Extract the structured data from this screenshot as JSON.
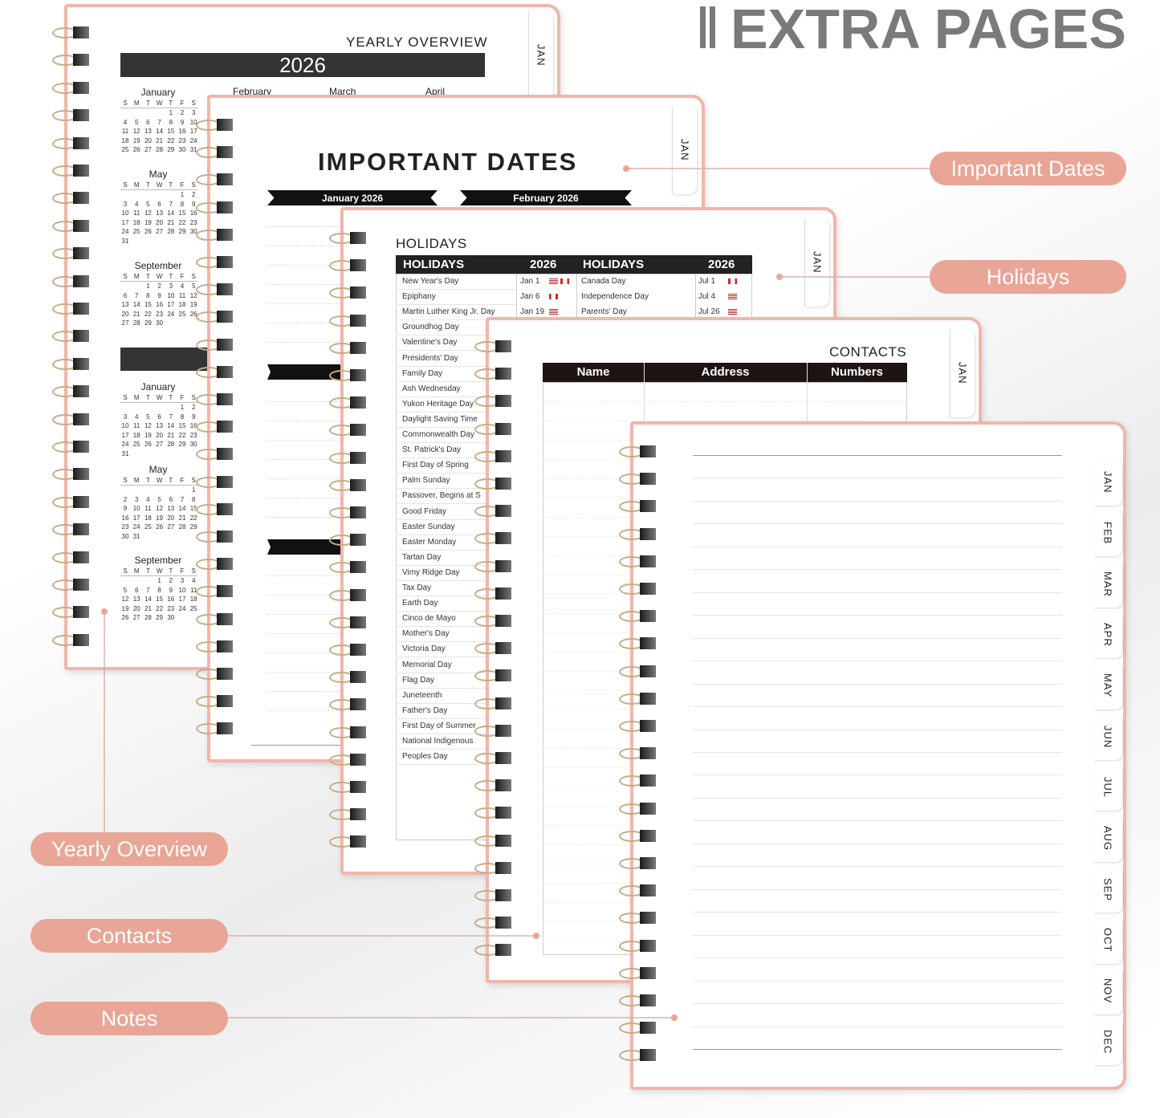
{
  "header": {
    "title": "EXTRA PAGES"
  },
  "callouts": [
    "Important Dates",
    "Holidays",
    "Yearly Overview",
    "Contacts",
    "Notes"
  ],
  "yearly_overview": {
    "title": "YEARLY OVERVIEW",
    "year": "2026",
    "tab": "JAN",
    "top_months": [
      "February",
      "March",
      "April"
    ],
    "weekdays": [
      "S",
      "M",
      "T",
      "W",
      "T",
      "F",
      "S"
    ],
    "months": [
      {
        "name": "January",
        "rows": [
          [
            null,
            null,
            null,
            null,
            1,
            2,
            3
          ],
          [
            4,
            5,
            6,
            7,
            8,
            9,
            10
          ],
          [
            11,
            12,
            13,
            14,
            15,
            16,
            17
          ],
          [
            18,
            19,
            20,
            21,
            22,
            23,
            24
          ],
          [
            25,
            26,
            27,
            28,
            29,
            30,
            31
          ]
        ]
      },
      {
        "name": "May",
        "rows": [
          [
            null,
            null,
            null,
            null,
            null,
            1,
            2
          ],
          [
            3,
            4,
            5,
            6,
            7,
            8,
            9
          ],
          [
            10,
            11,
            12,
            13,
            14,
            15,
            16
          ],
          [
            17,
            18,
            19,
            20,
            21,
            22,
            23
          ],
          [
            24,
            25,
            26,
            27,
            28,
            29,
            30
          ],
          [
            31
          ]
        ]
      },
      {
        "name": "September",
        "rows": [
          [
            null,
            null,
            1,
            2,
            3,
            4,
            5
          ],
          [
            6,
            7,
            8,
            9,
            10,
            11,
            12
          ],
          [
            13,
            14,
            15,
            16,
            17,
            18,
            19
          ],
          [
            20,
            21,
            22,
            23,
            24,
            25,
            26
          ],
          [
            27,
            28,
            29,
            30
          ]
        ]
      },
      {
        "name": "January",
        "rows": [
          [
            null,
            null,
            null,
            null,
            null,
            1,
            2
          ],
          [
            3,
            4,
            5,
            6,
            7,
            8,
            9
          ],
          [
            10,
            11,
            12,
            13,
            14,
            15,
            16
          ],
          [
            17,
            18,
            19,
            20,
            21,
            22,
            23
          ],
          [
            24,
            25,
            26,
            27,
            28,
            29,
            30
          ],
          [
            31
          ]
        ]
      },
      {
        "name": "May",
        "rows": [
          [
            null,
            null,
            null,
            null,
            null,
            null,
            1
          ],
          [
            2,
            3,
            4,
            5,
            6,
            7,
            8
          ],
          [
            9,
            10,
            11,
            12,
            13,
            14,
            15
          ],
          [
            16,
            17,
            18,
            19,
            20,
            21,
            22
          ],
          [
            23,
            24,
            25,
            26,
            27,
            28,
            29
          ],
          [
            30,
            31
          ]
        ]
      },
      {
        "name": "September",
        "rows": [
          [
            null,
            null,
            null,
            1,
            2,
            3,
            4
          ],
          [
            5,
            6,
            7,
            8,
            9,
            10,
            11
          ],
          [
            12,
            13,
            14,
            15,
            16,
            17,
            18
          ],
          [
            19,
            20,
            21,
            22,
            23,
            24,
            25
          ],
          [
            26,
            27,
            28,
            29,
            30
          ]
        ]
      }
    ]
  },
  "important_dates": {
    "title": "IMPORTANT DATES",
    "months": [
      "January 2026",
      "February 2026"
    ],
    "tab": "JAN"
  },
  "holidays": {
    "title": "HOLIDAYS",
    "header": [
      "HOLIDAYS",
      "2026",
      "HOLIDAYS",
      "2026"
    ],
    "tab": "JAN",
    "left": [
      {
        "name": "New Year's Day",
        "date": "Jan 1"
      },
      {
        "name": "Epiphany",
        "date": "Jan 6"
      },
      {
        "name": "Martin Luther King Jr. Day",
        "date": "Jan 19"
      },
      {
        "name": "Groundhog Day"
      },
      {
        "name": "Valentine's Day"
      },
      {
        "name": "Presidents' Day"
      },
      {
        "name": "Family Day"
      },
      {
        "name": "Ash Wednesday"
      },
      {
        "name": "Yukon Heritage Day"
      },
      {
        "name": "Daylight Saving Time"
      },
      {
        "name": "Commonwealth Day"
      },
      {
        "name": "St. Patrick's Day"
      },
      {
        "name": "First Day of  Spring"
      },
      {
        "name": "Palm Sunday"
      },
      {
        "name": "Passover, Begins at S"
      },
      {
        "name": "Good Friday"
      },
      {
        "name": "Easter Sunday"
      },
      {
        "name": "Easter Monday"
      },
      {
        "name": "Tartan Day"
      },
      {
        "name": "Vimy Ridge Day"
      },
      {
        "name": "Tax Day"
      },
      {
        "name": "Earth Day"
      },
      {
        "name": "Cinco de Mayo"
      },
      {
        "name": "Mother's Day"
      },
      {
        "name": "Victoria Day"
      },
      {
        "name": "Memorial Day"
      },
      {
        "name": "Flag Day"
      },
      {
        "name": "Juneteenth"
      },
      {
        "name": "Father's Day"
      },
      {
        "name": "First Day of Summer"
      },
      {
        "name": "National Indigenous"
      },
      {
        "name": "Peoples Day"
      }
    ],
    "right": [
      {
        "name": "Canada Day",
        "date": "Jul 1"
      },
      {
        "name": "Independence Day",
        "date": "Jul 4"
      },
      {
        "name": "Parents' Day",
        "date": "Jul 26"
      }
    ]
  },
  "contacts": {
    "title": "CONTACTS",
    "columns": [
      "Name",
      "Address",
      "Numbers"
    ],
    "tab": "JAN"
  },
  "notes": {
    "tabs": [
      "JAN",
      "FEB",
      "MAR",
      "APR",
      "MAY",
      "JUN",
      "JUL",
      "AUG",
      "SEP",
      "OCT",
      "NOV",
      "DEC"
    ]
  }
}
